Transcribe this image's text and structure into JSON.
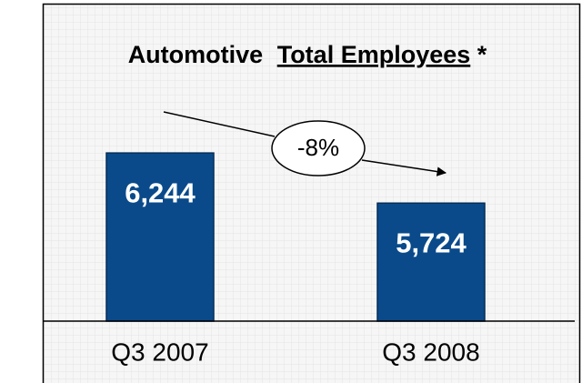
{
  "chart_data": {
    "type": "bar",
    "title": [
      "Automotive",
      "Total Employees",
      "*"
    ],
    "annotation": "-8%",
    "categories": [
      "Q3 2007",
      "Q3 2008"
    ],
    "values": [
      6244,
      5724
    ],
    "value_labels": [
      "6,244",
      "5,724"
    ],
    "color": "#0a4a8a",
    "ylim": [
      4500,
      6500
    ]
  }
}
